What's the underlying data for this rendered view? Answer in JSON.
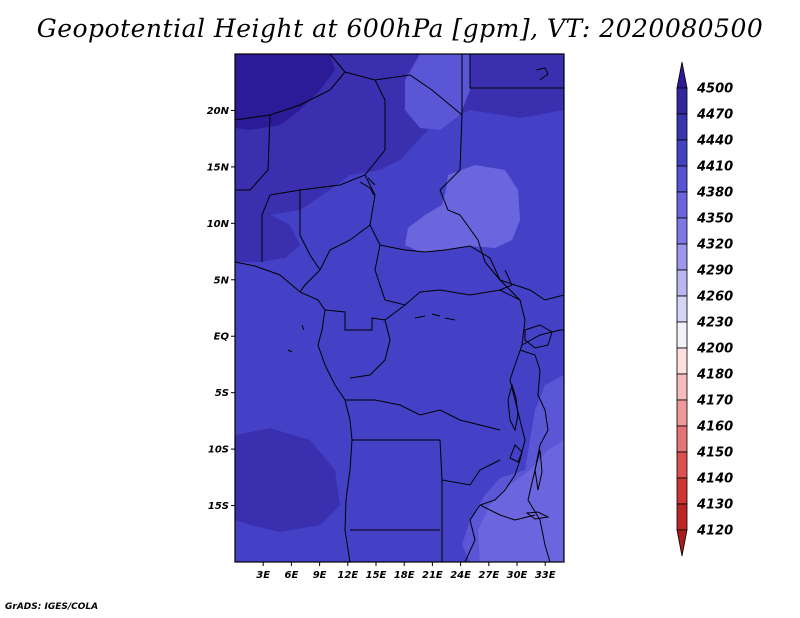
{
  "title": "Geopotential Height at 600hPa [gpm], VT: 2020080500",
  "credit": "GrADS: IGES/COLA",
  "map": {
    "lat_range": [
      -20,
      25
    ],
    "lon_range": [
      0,
      35
    ],
    "lat_ticks": [
      "20N",
      "15N",
      "10N",
      "5N",
      "EQ",
      "5S",
      "10S",
      "15S"
    ],
    "lon_ticks": [
      "3E",
      "6E",
      "9E",
      "12E",
      "15E",
      "18E",
      "21E",
      "24E",
      "27E",
      "30E",
      "33E"
    ]
  },
  "colorbar": {
    "levels": [
      "4500",
      "4470",
      "4440",
      "4410",
      "4380",
      "4350",
      "4320",
      "4290",
      "4260",
      "4230",
      "4200",
      "4180",
      "4170",
      "4160",
      "4150",
      "4140",
      "4130",
      "4120"
    ],
    "colors": [
      "#2c1b96",
      "#32279f",
      "#3935b1",
      "#4242c4",
      "#5552d6",
      "#6a64de",
      "#7e78e6",
      "#9c96ec",
      "#b9b6f1",
      "#d6d4f6",
      "#f2f2fb",
      "#fce0e0",
      "#f6bcbc",
      "#ef9a9a",
      "#e57575",
      "#dc5151",
      "#cf3535",
      "#bb2525",
      "#a81c1c"
    ]
  },
  "palette": {
    "darkest": "#2c1b96",
    "dark": "#3a2fae",
    "base": "#4541c6",
    "light": "#5a56d6",
    "lighter": "#6c66de"
  }
}
